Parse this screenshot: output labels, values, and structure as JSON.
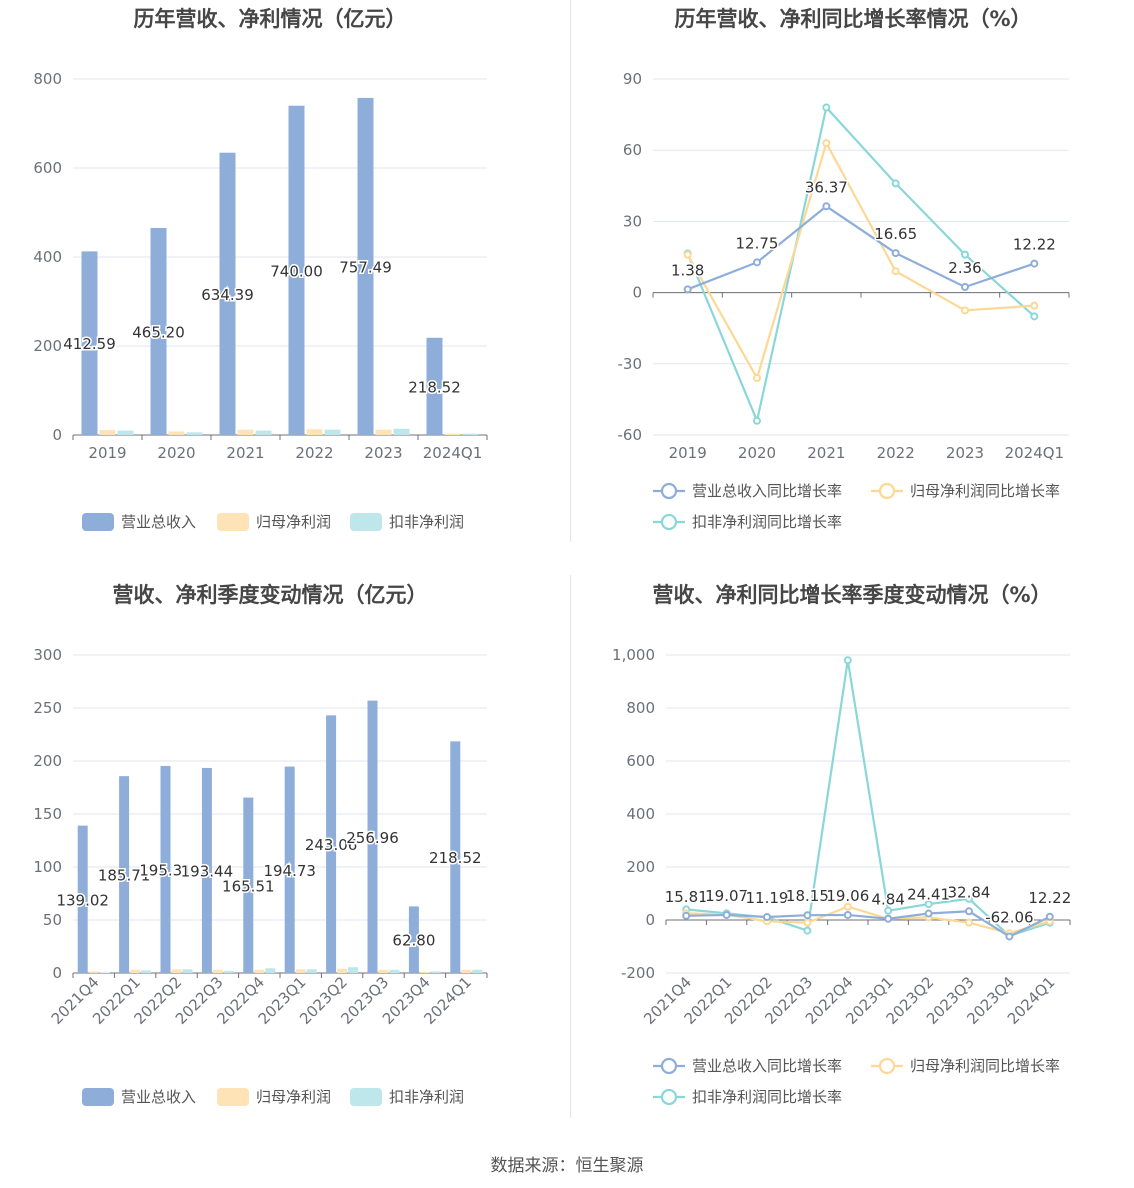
{
  "source_label": "数据来源：恒生聚源",
  "colors": {
    "revenue": "#8eadd9",
    "net_profit": "#fde3b5",
    "deducted_profit": "#bde7ea",
    "revenue_line": "#8eadd9",
    "net_profit_line": "#fcd894",
    "deducted_profit_line": "#8ad7da",
    "axis": "#6e7079",
    "grid": "#e0e6f1"
  },
  "chart_data": [
    {
      "id": "annual-amount",
      "type": "bar",
      "title": "历年营收、净利情况（亿元）",
      "categories": [
        "2019",
        "2020",
        "2021",
        "2022",
        "2023",
        "2024Q1"
      ],
      "ylim": [
        0,
        800
      ],
      "yticks": [
        "0",
        "200",
        "400",
        "600",
        "800"
      ],
      "grid": true,
      "legend_position": "bottom",
      "series": [
        {
          "name": "营业总收入",
          "values": [
            412.59,
            465.2,
            634.39,
            740.0,
            757.49,
            218.52
          ],
          "labels": [
            "412.59",
            "465.20",
            "634.39",
            "740.00",
            "757.49",
            "218.52"
          ]
        },
        {
          "name": "归母净利润",
          "values": [
            11,
            8,
            12,
            13,
            12,
            3
          ]
        },
        {
          "name": "扣非净利润",
          "values": [
            10,
            6,
            10,
            12,
            14,
            3
          ]
        }
      ]
    },
    {
      "id": "annual-growth",
      "type": "line",
      "title": "历年营收、净利同比增长率情况（%）",
      "categories": [
        "2019",
        "2020",
        "2021",
        "2022",
        "2023",
        "2024Q1"
      ],
      "ylim": [
        -60,
        90
      ],
      "yticks": [
        "-60",
        "-30",
        "0",
        "30",
        "60",
        "90"
      ],
      "grid": true,
      "legend_position": "bottom",
      "series": [
        {
          "name": "营业总收入同比增长率",
          "values": [
            1.38,
            12.75,
            36.37,
            16.65,
            2.36,
            12.22
          ],
          "labels": [
            "1.38",
            "12.75",
            "36.37",
            "16.65",
            "2.36",
            "12.22"
          ]
        },
        {
          "name": "归母净利润同比增长率",
          "values": [
            16,
            -36,
            63,
            9,
            -7.5,
            -5.5
          ]
        },
        {
          "name": "扣非净利润同比增长率",
          "values": [
            16.5,
            -54,
            78,
            46,
            16,
            -10
          ]
        }
      ]
    },
    {
      "id": "quarterly-amount",
      "type": "bar",
      "title": "营收、净利季度变动情况（亿元）",
      "categories": [
        "2021Q4",
        "2022Q1",
        "2022Q2",
        "2022Q3",
        "2022Q4",
        "2023Q1",
        "2023Q2",
        "2023Q3",
        "2023Q4",
        "2024Q1"
      ],
      "ylim": [
        0,
        300
      ],
      "yticks": [
        "0",
        "50",
        "100",
        "150",
        "200",
        "250",
        "300"
      ],
      "grid": true,
      "legend_position": "bottom",
      "series": [
        {
          "name": "营业总收入",
          "values": [
            139.02,
            185.71,
            195.31,
            193.44,
            165.51,
            194.73,
            243.06,
            256.96,
            62.8,
            218.52
          ],
          "labels": [
            "139.02",
            "185.71",
            "195.31",
            "193.44",
            "165.51",
            "194.73",
            "243.06",
            "256.96",
            "62.80",
            "218.52"
          ]
        },
        {
          "name": "归母净利润",
          "values": [
            1.5,
            3,
            3.5,
            3,
            3,
            3.5,
            4,
            3,
            1,
            3
          ]
        },
        {
          "name": "扣非净利润",
          "values": [
            0.5,
            2.5,
            3.5,
            2,
            4.5,
            3.5,
            5.5,
            3,
            1.5,
            3
          ]
        }
      ]
    },
    {
      "id": "quarterly-growth",
      "type": "line",
      "title": "营收、净利同比增长率季度变动情况（%）",
      "categories": [
        "2021Q4",
        "2022Q1",
        "2022Q2",
        "2022Q3",
        "2022Q4",
        "2023Q1",
        "2023Q2",
        "2023Q3",
        "2023Q4",
        "2024Q1"
      ],
      "ylim": [
        -200,
        1000
      ],
      "yticks": [
        "-200",
        "0",
        "200",
        "400",
        "600",
        "800",
        "1,000"
      ],
      "grid": true,
      "legend_position": "bottom",
      "series": [
        {
          "name": "营业总收入同比增长率",
          "values": [
            15.81,
            19.07,
            11.19,
            18.15,
            19.06,
            4.84,
            24.41,
            32.84,
            -62.06,
            12.22
          ],
          "labels": [
            "15.81",
            "19.07",
            "11.19",
            "18.15",
            "19.06",
            "4.84",
            "24.41",
            "32.84",
            "-62.06",
            "12.22"
          ]
        },
        {
          "name": "归母净利润同比增长率",
          "values": [
            25,
            20,
            -5,
            -10,
            50,
            5,
            10,
            -10,
            -50,
            -5
          ]
        },
        {
          "name": "扣非净利润同比增长率",
          "values": [
            40,
            25,
            10,
            -40,
            980,
            35,
            60,
            80,
            -60,
            -10
          ]
        }
      ]
    }
  ]
}
